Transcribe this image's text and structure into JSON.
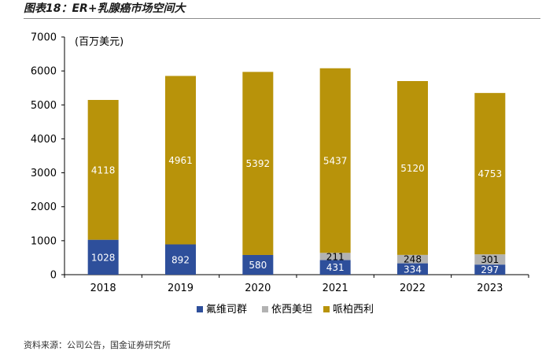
{
  "figure_title": "图表18：ER+乳腺癌市场空间大",
  "source_text": "资料来源：公司公告，国金证券研究所",
  "colors": {
    "fulvestrant": "#2e4f9b",
    "elacestrant": "#b2b2b2",
    "palbociclib": "#b8930a"
  },
  "chart_data": {
    "type": "bar",
    "stacked": true,
    "title": "",
    "unit_label": "(百万美元)",
    "xlabel": "",
    "ylabel": "",
    "ylim": [
      0,
      7000
    ],
    "yticks": [
      0,
      1000,
      2000,
      3000,
      4000,
      5000,
      6000,
      7000
    ],
    "categories": [
      "2018",
      "2019",
      "2020",
      "2021",
      "2022",
      "2023"
    ],
    "series": [
      {
        "name": "氟维司群",
        "key": "fulvestrant",
        "values": [
          1028,
          892,
          580,
          431,
          334,
          297
        ]
      },
      {
        "name": "依西美坦",
        "key": "elacestrant",
        "values": [
          0,
          0,
          0,
          211,
          248,
          301
        ]
      },
      {
        "name": "哌柏西利",
        "key": "palbociclib",
        "values": [
          4118,
          4961,
          5392,
          5437,
          5120,
          4753
        ]
      }
    ],
    "legend_position": "bottom"
  }
}
